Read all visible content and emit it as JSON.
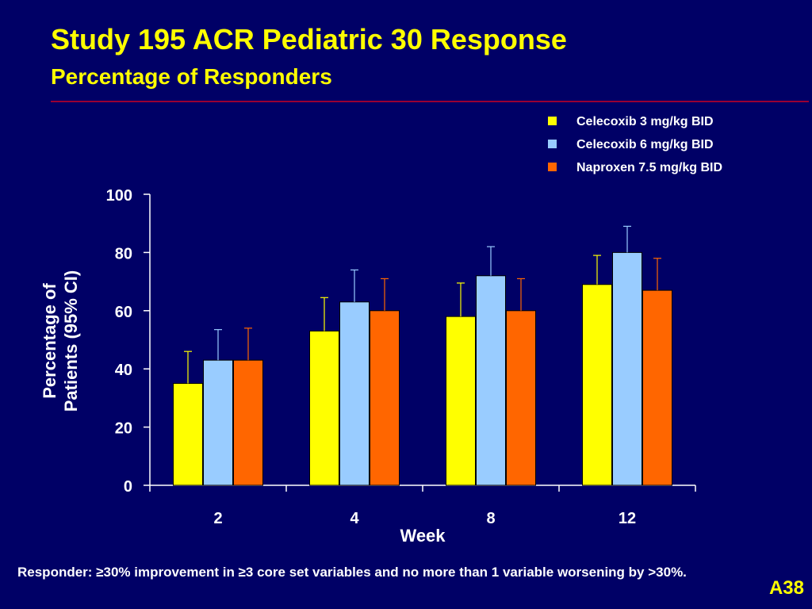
{
  "slide": {
    "title": "Study 195 ACR Pediatric 30 Response",
    "subtitle": "Percentage of Responders",
    "footnote": "Responder: ≥30% improvement in ≥3 core set variables and no more than 1 variable worsening by >30%.",
    "page_number": "A38"
  },
  "colors": {
    "background": "#000066",
    "title": "#ffff00",
    "rule": "#990033",
    "axis": "#ffffff"
  },
  "chart_data": {
    "type": "bar",
    "xlabel": "Week",
    "ylabel_lines": [
      "Percentage of",
      "Patients (95% CI)"
    ],
    "categories": [
      "2",
      "4",
      "8",
      "12"
    ],
    "ylim": [
      0,
      100
    ],
    "yticks": [
      0,
      20,
      40,
      60,
      80,
      100
    ],
    "legend_position": "top-right",
    "grid": false,
    "error_bars": "upper 95% CI",
    "series": [
      {
        "name": "Celecoxib 3 mg/kg BID",
        "color": "#ffff00",
        "values": [
          35,
          53,
          58,
          69
        ],
        "ci_upper": [
          46,
          64.5,
          69.5,
          79
        ]
      },
      {
        "name": "Celecoxib 6 mg/kg BID",
        "color": "#99ccff",
        "values": [
          43,
          63,
          72,
          80
        ],
        "ci_upper": [
          53.5,
          74,
          82,
          89
        ]
      },
      {
        "name": "Naproxen 7.5 mg/kg BID",
        "color": "#ff6600",
        "values": [
          43,
          60,
          60,
          67
        ],
        "ci_upper": [
          54,
          71,
          71,
          78
        ]
      }
    ]
  }
}
